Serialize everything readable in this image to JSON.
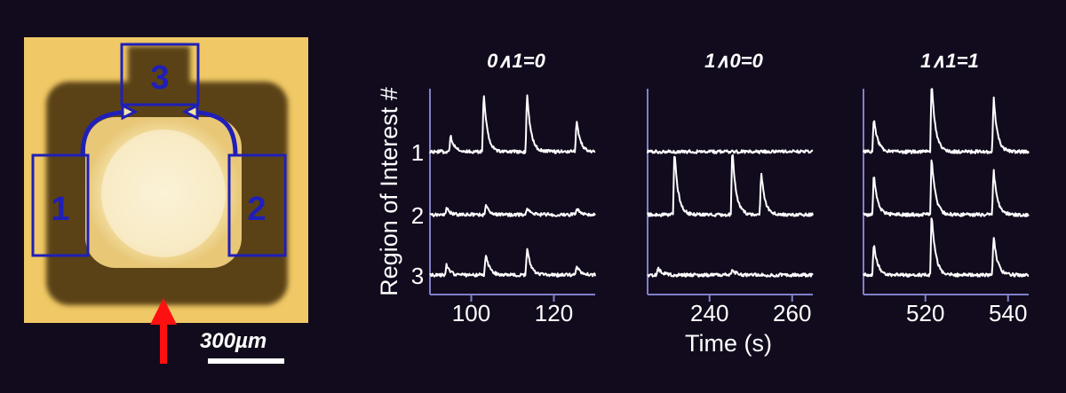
{
  "micrograph": {
    "regions": [
      {
        "label": "1"
      },
      {
        "label": "2"
      },
      {
        "label": "3"
      }
    ],
    "scale_bar_label": "300µm",
    "colors": {
      "substrate": "#f0c865",
      "channel": "#4a3716",
      "outline": "#1f1fb8",
      "arrow": "#ff1010"
    }
  },
  "chart_data": {
    "type": "line",
    "ylabel": "Region of Interest #",
    "xlabel": "Time (s)",
    "row_labels": [
      "1",
      "2",
      "3"
    ],
    "line_color": "#ffffff",
    "axis_color": "#8080c8",
    "panels": [
      {
        "title": "0∧1=0",
        "xlim": [
          90,
          130
        ],
        "xticks": [
          100,
          120
        ],
        "series": [
          {
            "baseline": 0,
            "spikes": [
              {
                "t": 95,
                "h": 0.15
              },
              {
                "t": 103,
                "h": 0.55
              },
              {
                "t": 113.5,
                "h": 0.55
              },
              {
                "t": 125.5,
                "h": 0.3
              }
            ]
          },
          {
            "baseline": 0,
            "spikes": [
              {
                "t": 94,
                "h": 0.06
              },
              {
                "t": 103.5,
                "h": 0.09
              },
              {
                "t": 113.5,
                "h": 0.07
              },
              {
                "t": 125.5,
                "h": 0.06
              }
            ]
          },
          {
            "baseline": 0,
            "spikes": [
              {
                "t": 94,
                "h": 0.09
              },
              {
                "t": 103.5,
                "h": 0.2
              },
              {
                "t": 113.5,
                "h": 0.25
              },
              {
                "t": 125.5,
                "h": 0.09
              }
            ]
          }
        ]
      },
      {
        "title": "1∧0=0",
        "xlim": [
          225,
          265
        ],
        "xticks": [
          240,
          260
        ],
        "series": [
          {
            "baseline": 0,
            "spikes": []
          },
          {
            "baseline": 0,
            "spikes": [
              {
                "t": 231.5,
                "h": 0.6
              },
              {
                "t": 245.5,
                "h": 0.62
              },
              {
                "t": 252.5,
                "h": 0.4
              }
            ]
          },
          {
            "baseline": 0,
            "spikes": [
              {
                "t": 227.5,
                "h": 0.07
              },
              {
                "t": 245.5,
                "h": 0.05
              }
            ]
          }
        ]
      },
      {
        "title": "1∧1=1",
        "xlim": [
          505,
          545
        ],
        "xticks": [
          520,
          540
        ],
        "series": [
          {
            "baseline": 0,
            "spikes": [
              {
                "t": 507.5,
                "h": 0.32
              },
              {
                "t": 521.5,
                "h": 0.65
              },
              {
                "t": 536.5,
                "h": 0.52
              }
            ]
          },
          {
            "baseline": 0,
            "spikes": [
              {
                "t": 507.5,
                "h": 0.38
              },
              {
                "t": 521.5,
                "h": 0.55
              },
              {
                "t": 536.5,
                "h": 0.42
              }
            ]
          },
          {
            "baseline": 0,
            "spikes": [
              {
                "t": 507.5,
                "h": 0.3
              },
              {
                "t": 521.5,
                "h": 0.58
              },
              {
                "t": 536.5,
                "h": 0.37
              }
            ]
          }
        ]
      }
    ]
  }
}
